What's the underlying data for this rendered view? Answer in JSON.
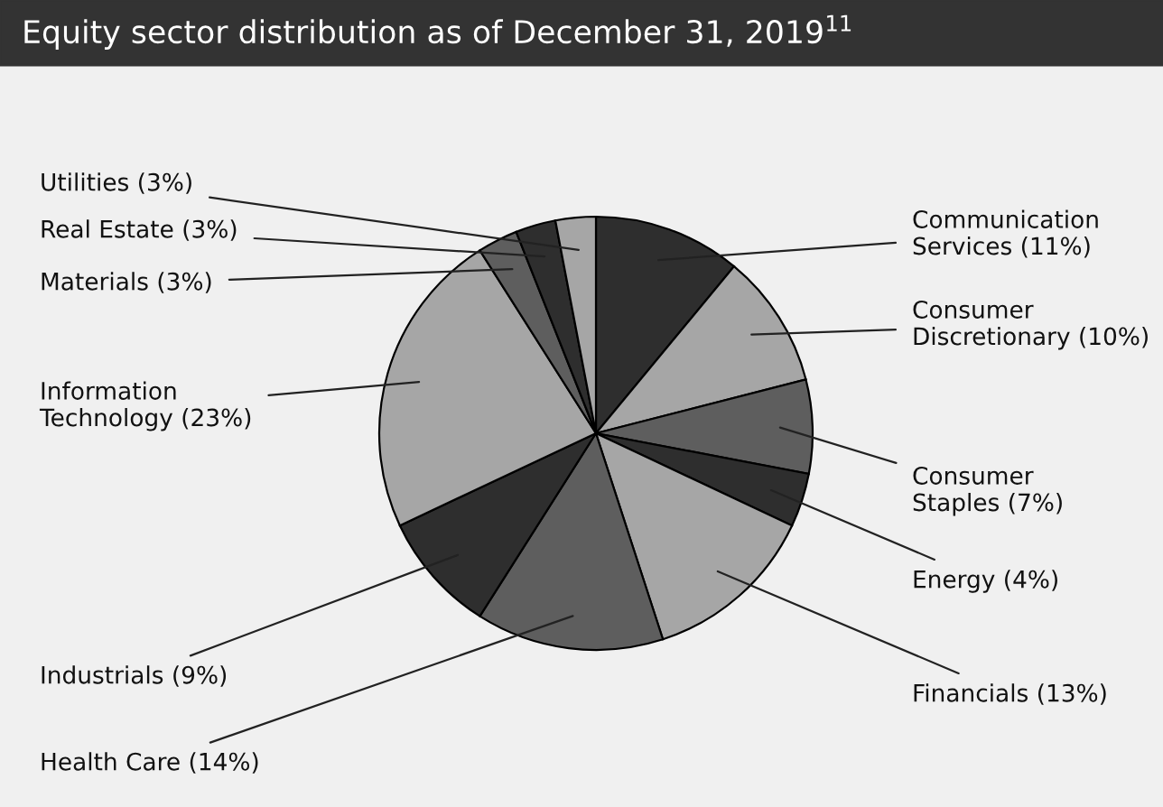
{
  "chart_data": {
    "type": "pie",
    "title": "Equity sector distribution as of December 31, 2019$^{11}$",
    "categories": [
      "Communication Services (11%)",
      "Consumer Discretionary (10%)",
      "Consumer Staples (7%)",
      "Energy (4%)",
      "Financials (13%)",
      "Health Care (14%)",
      "Industrials (9%)",
      "Information Technology (23%)",
      "Materials (3%)",
      "Real Estate (3%)",
      "Utilities (3%)"
    ],
    "values": [
      11,
      10,
      7,
      4,
      13,
      14,
      9,
      23,
      3,
      3,
      3
    ],
    "colors": [
      "#2e2e2e",
      "#a6a6a6",
      "#5e5e5e",
      "#2e2e2e",
      "#a6a6a6",
      "#5e5e5e",
      "#2e2e2e",
      "#a6a6a6",
      "#5e5e5e",
      "#2e2e2e",
      "#a6a6a6"
    ]
  }
}
